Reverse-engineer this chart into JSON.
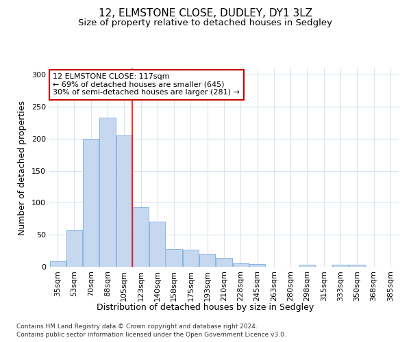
{
  "title": "12, ELMSTONE CLOSE, DUDLEY, DY1 3LZ",
  "subtitle": "Size of property relative to detached houses in Sedgley",
  "xlabel": "Distribution of detached houses by size in Sedgley",
  "ylabel": "Number of detached properties",
  "categories": [
    "35sqm",
    "53sqm",
    "70sqm",
    "88sqm",
    "105sqm",
    "123sqm",
    "140sqm",
    "158sqm",
    "175sqm",
    "193sqm",
    "210sqm",
    "228sqm",
    "245sqm",
    "263sqm",
    "280sqm",
    "298sqm",
    "315sqm",
    "333sqm",
    "350sqm",
    "368sqm",
    "385sqm"
  ],
  "values": [
    9,
    58,
    200,
    233,
    205,
    93,
    71,
    28,
    27,
    20,
    14,
    5,
    4,
    0,
    0,
    3,
    0,
    3,
    3,
    0,
    0
  ],
  "bar_color": "#c5d8f0",
  "bar_edge_color": "#7aabde",
  "red_line_bar_index": 4.5,
  "annotation_text": "12 ELMSTONE CLOSE: 117sqm\n← 69% of detached houses are smaller (645)\n30% of semi-detached houses are larger (281) →",
  "annotation_box_color": "#ffffff",
  "annotation_box_edge": "#cc0000",
  "ylim": [
    0,
    310
  ],
  "yticks": [
    0,
    50,
    100,
    150,
    200,
    250,
    300
  ],
  "footer_line1": "Contains HM Land Registry data © Crown copyright and database right 2024.",
  "footer_line2": "Contains public sector information licensed under the Open Government Licence v3.0.",
  "background_color": "#ffffff",
  "grid_color": "#d8e4f0",
  "title_fontsize": 11,
  "subtitle_fontsize": 9.5,
  "axis_label_fontsize": 9,
  "tick_fontsize": 8,
  "annotation_fontsize": 8,
  "footer_fontsize": 6.5
}
